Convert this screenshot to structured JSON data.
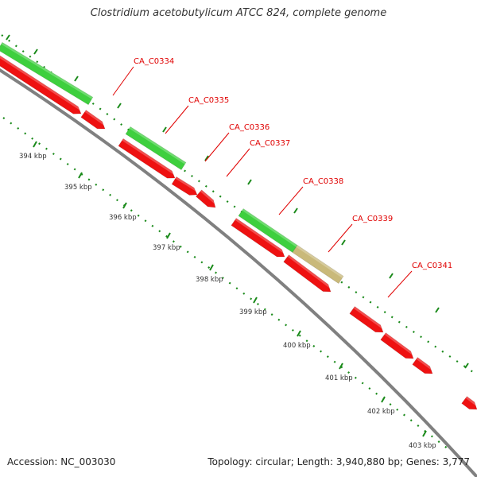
{
  "title": "Clostridium acetobutylicum ATCC 824, complete genome",
  "footer": {
    "accession": "Accession: NC_003030",
    "summary": "Topology: circular; Length: 3,940,880 bp; Genes: 3,777"
  },
  "colors": {
    "forward_gene": "#3ecf3e",
    "reverse_gene": "#ee1111",
    "highlight_gene": "#c9b97a",
    "backbone": "#808080",
    "label": "#e00000",
    "tick": "#1a8a1a"
  },
  "scale_labels": [
    "394 kbp",
    "395 kbp",
    "396 kbp",
    "397 kbp",
    "398 kbp",
    "399 kbp",
    "400 kbp",
    "401 kbp",
    "402 kbp",
    "403 kbp"
  ],
  "gene_labels": [
    "CA_C0334",
    "CA_C0335",
    "CA_C0336",
    "CA_C0337",
    "CA_C0338",
    "CA_C0339",
    "CA_C0341"
  ]
}
